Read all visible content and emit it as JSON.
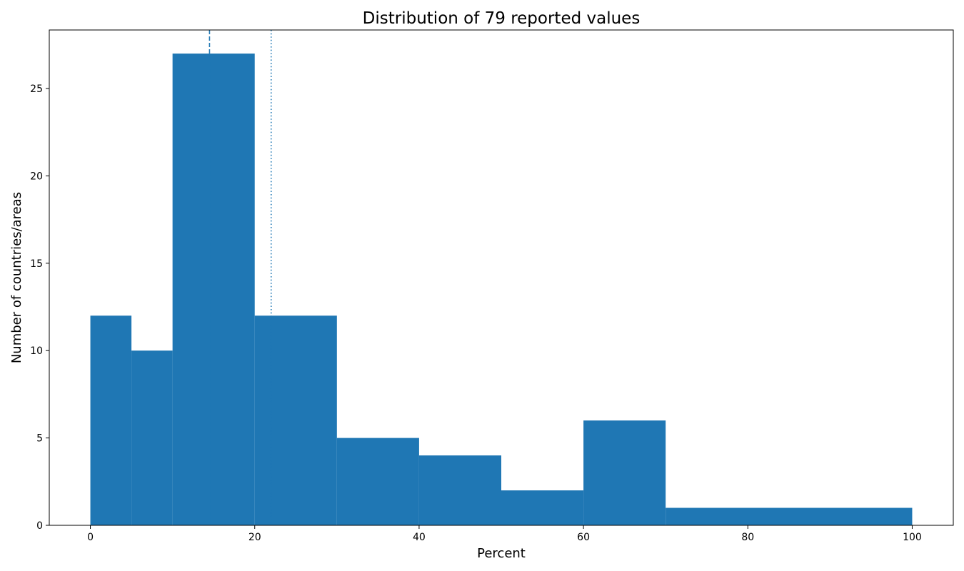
{
  "chart_data": {
    "type": "bar",
    "title": "Distribution of 79 reported values",
    "xlabel": "Percent",
    "ylabel": "Number of countries/areas",
    "xlim": [
      -5,
      105
    ],
    "ylim": [
      0,
      28.35
    ],
    "grid": false,
    "x_ticks": [
      0,
      20,
      40,
      60,
      80,
      100
    ],
    "y_ticks": [
      0,
      5,
      10,
      15,
      20,
      25
    ],
    "bins": [
      {
        "start": 0,
        "end": 5,
        "count": 12
      },
      {
        "start": 5,
        "end": 10,
        "count": 10
      },
      {
        "start": 10,
        "end": 20,
        "count": 27
      },
      {
        "start": 20,
        "end": 30,
        "count": 12
      },
      {
        "start": 30,
        "end": 40,
        "count": 5
      },
      {
        "start": 40,
        "end": 50,
        "count": 4
      },
      {
        "start": 50,
        "end": 60,
        "count": 2
      },
      {
        "start": 60,
        "end": 70,
        "count": 6
      },
      {
        "start": 70,
        "end": 100,
        "count": 1
      }
    ],
    "reference_lines": [
      {
        "x": 14.5,
        "style": "dashed"
      },
      {
        "x": 22.0,
        "style": "dotted"
      }
    ],
    "colors": {
      "bar": "#1f77b4",
      "line": "#1f77b4",
      "axis": "#000000"
    }
  }
}
